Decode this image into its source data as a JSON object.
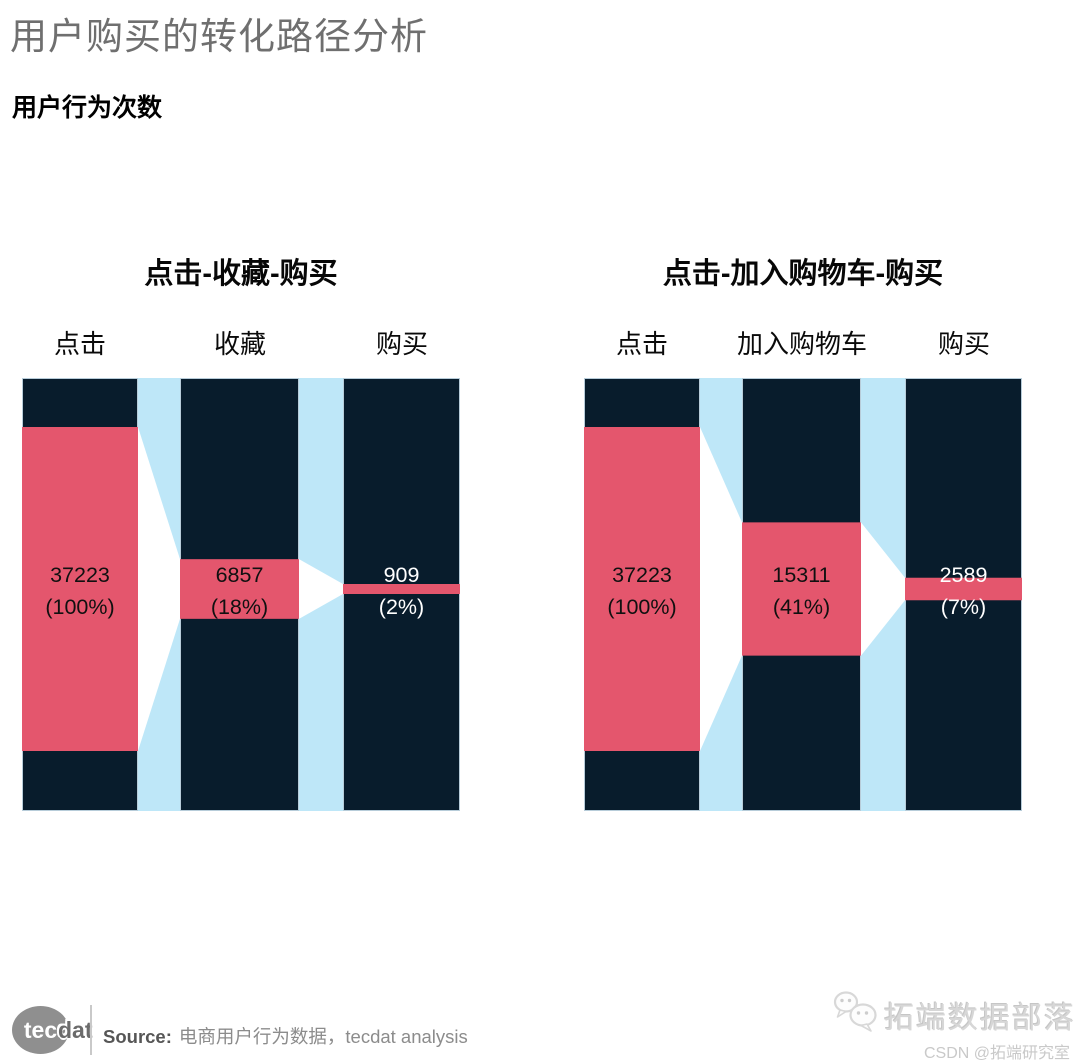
{
  "page": {
    "title": "用户购买的转化路径分析",
    "subtitle": "用户行为次数"
  },
  "colors": {
    "bar_bg": "#081c2c",
    "bar_fill": "#e4566d",
    "bar_border": "#b7ccd9",
    "connector_bg": "#bee7f8",
    "connector_fill": "#ffffff",
    "label_dark": "#101010",
    "label_light": "#ffffff"
  },
  "chart_data": [
    {
      "type": "funnel",
      "title": "点击-收藏-购买",
      "max_value": 37223,
      "stages": [
        {
          "label": "点击",
          "value": 37223,
          "pct": 100
        },
        {
          "label": "收藏",
          "value": 6857,
          "pct": 18
        },
        {
          "label": "购买",
          "value": 909,
          "pct": 2
        }
      ]
    },
    {
      "type": "funnel",
      "title": "点击-加入购物车-购买",
      "max_value": 37223,
      "stages": [
        {
          "label": "点击",
          "value": 37223,
          "pct": 100
        },
        {
          "label": "加入购物车",
          "value": 15311,
          "pct": 41
        },
        {
          "label": "购买",
          "value": 2589,
          "pct": 7
        }
      ]
    }
  ],
  "footer": {
    "logo_tec": "tec",
    "logo_dat": "dat",
    "source_label": "Source:",
    "source_text": "电商用户行为数据，tecdat analysis",
    "wechat_icon": "wechat-icon",
    "watermark": "拓端数据部落",
    "csdn": "CSDN @拓端研究室"
  }
}
